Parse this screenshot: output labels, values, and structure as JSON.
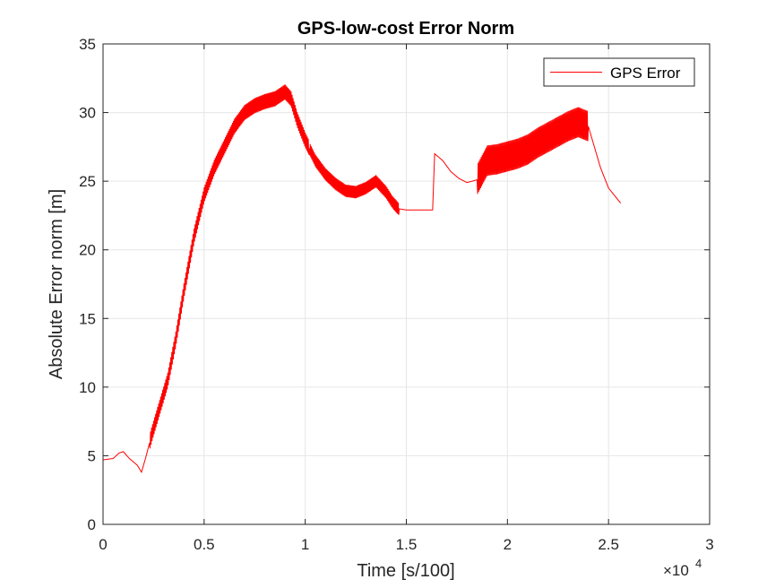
{
  "chart_data": {
    "type": "line",
    "title": "GPS-low-cost Error Norm",
    "xlabel": "Time [s/100]",
    "ylabel": "Absolute Error norm [m]",
    "xlim": [
      0,
      30000
    ],
    "ylim": [
      0,
      35
    ],
    "x_ticks": [
      0,
      5000,
      10000,
      15000,
      20000,
      25000,
      30000
    ],
    "x_tick_labels": [
      "0",
      "0.5",
      "1",
      "1.5",
      "2",
      "2.5",
      "3"
    ],
    "x_exponent_label": "×10",
    "x_exponent_power": "4",
    "y_ticks": [
      0,
      5,
      10,
      15,
      20,
      25,
      30,
      35
    ],
    "y_tick_labels": [
      "0",
      "5",
      "10",
      "15",
      "20",
      "25",
      "30",
      "35"
    ],
    "grid": true,
    "legend_position": "top-right",
    "series": [
      {
        "name": "GPS Error",
        "color": "#ff0000",
        "x": [
          0,
          500,
          800,
          1000,
          1300,
          1700,
          1900,
          2100,
          2400,
          2800,
          3200,
          3600,
          4000,
          4500,
          5000,
          5500,
          6000,
          6500,
          7000,
          7500,
          8000,
          8500,
          9000,
          9300,
          9600,
          10000,
          10500,
          11000,
          11500,
          12000,
          12500,
          13000,
          13500,
          14000,
          14300,
          14600,
          15000,
          15500,
          16000,
          16300,
          16400,
          16800,
          17200,
          17600,
          18000,
          18500,
          19000,
          19500,
          20000,
          20500,
          21000,
          21500,
          22000,
          22500,
          23000,
          23500,
          24000,
          24300,
          24600,
          25000,
          25600
        ],
        "y": [
          4.7,
          4.8,
          5.2,
          5.3,
          4.8,
          4.3,
          3.8,
          4.8,
          6.5,
          8.5,
          10.5,
          13.5,
          17.0,
          21.0,
          24.0,
          26.0,
          27.5,
          29.0,
          30.0,
          30.5,
          30.8,
          31.0,
          31.5,
          31.0,
          29.5,
          28.0,
          26.5,
          25.5,
          24.8,
          24.3,
          24.2,
          24.5,
          25.0,
          24.2,
          23.5,
          23.0,
          22.9,
          22.9,
          22.9,
          22.9,
          27.0,
          26.5,
          25.7,
          25.2,
          24.9,
          25.1,
          26.5,
          26.6,
          26.8,
          27.0,
          27.3,
          27.8,
          28.2,
          28.6,
          29.0,
          29.3,
          29.0,
          27.5,
          26.0,
          24.5,
          23.4
        ]
      }
    ]
  }
}
